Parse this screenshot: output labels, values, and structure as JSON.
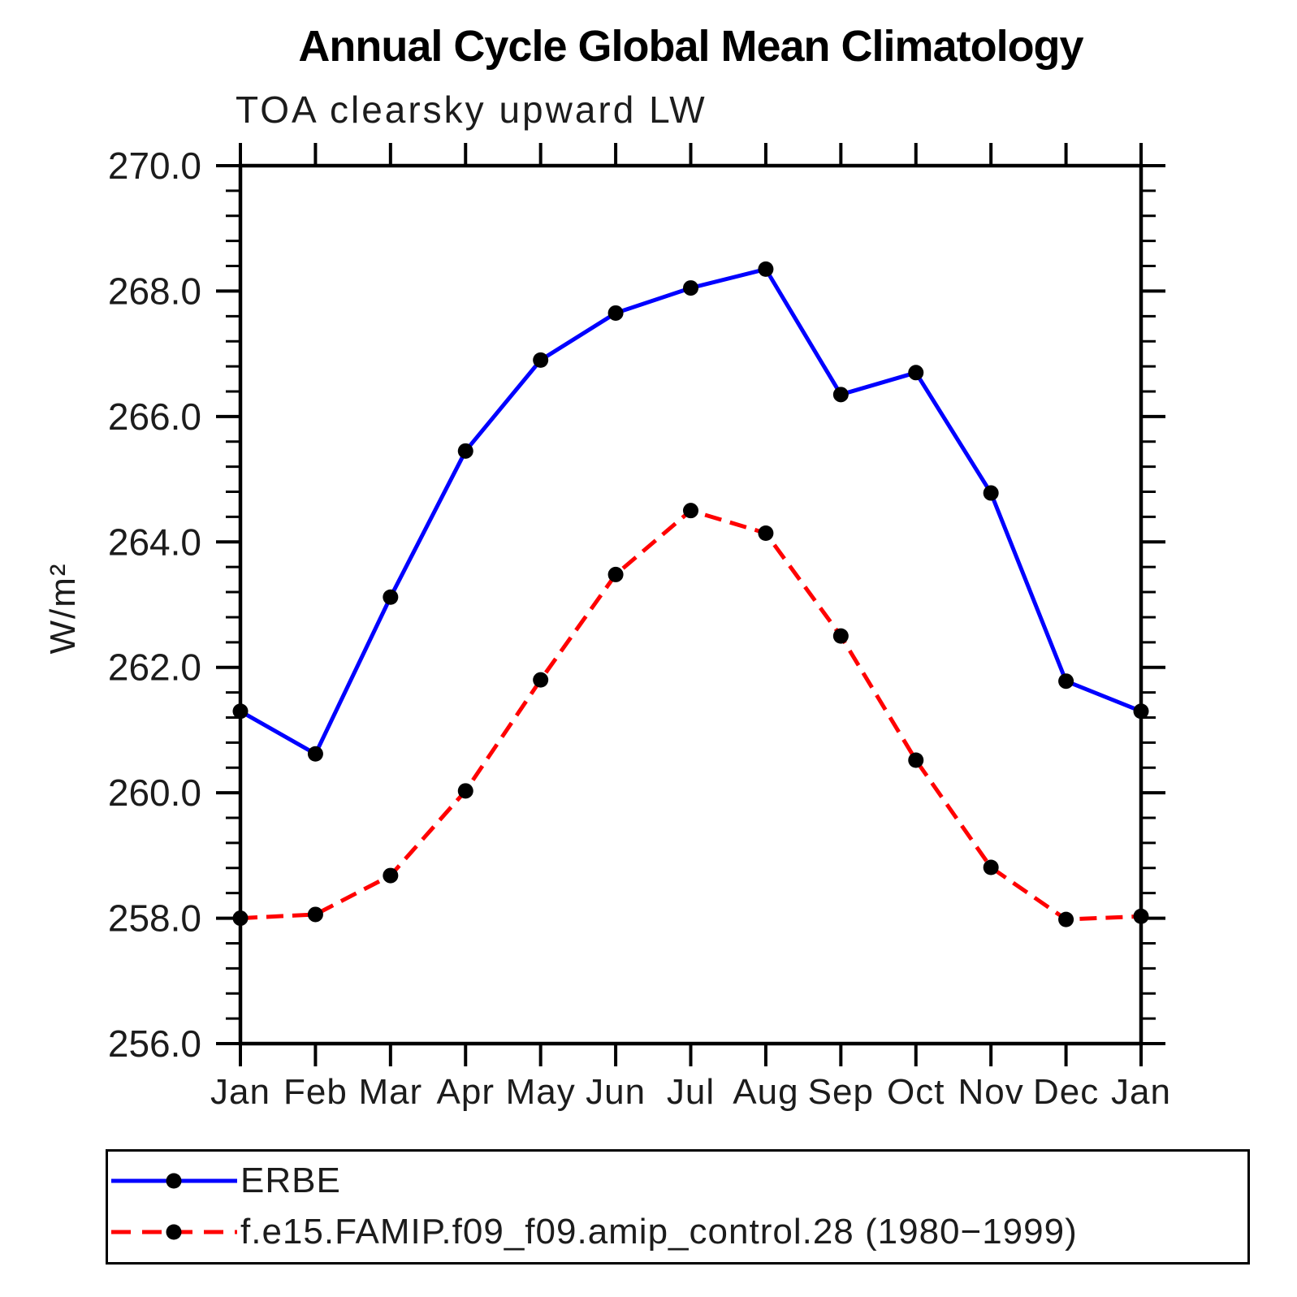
{
  "chart_data": {
    "type": "line",
    "title": "Annual Cycle Global Mean Climatology",
    "subtitle": "TOA clearsky upward LW",
    "xlabel": "",
    "ylabel": "W/m²",
    "categories": [
      "Jan",
      "Feb",
      "Mar",
      "Apr",
      "May",
      "Jun",
      "Jul",
      "Aug",
      "Sep",
      "Oct",
      "Nov",
      "Dec",
      "Jan"
    ],
    "ylim": [
      256.0,
      270.0
    ],
    "y_major_step": 2.0,
    "y_minor_step": 0.4,
    "y_tick_labels": [
      "256.0",
      "258.0",
      "260.0",
      "262.0",
      "264.0",
      "266.0",
      "268.0",
      "270.0"
    ],
    "grid": false,
    "legend_position": "bottom-left-box",
    "marker_color": "#000000",
    "axis_color": "#000000",
    "series": [
      {
        "name": "ERBE",
        "color": "#0000ff",
        "line_style": "solid",
        "values": [
          261.3,
          260.62,
          263.12,
          265.45,
          266.9,
          267.65,
          268.05,
          268.35,
          266.35,
          266.7,
          264.78,
          261.78,
          261.3
        ]
      },
      {
        "name": "f.e15.FAMIP.f09_f09.amip_control.28 (1980−1999)",
        "color": "#ff0000",
        "line_style": "dashed",
        "values": [
          258.0,
          258.06,
          258.68,
          260.03,
          261.8,
          263.48,
          264.5,
          264.14,
          262.5,
          260.52,
          258.81,
          257.98,
          258.03
        ]
      }
    ]
  }
}
